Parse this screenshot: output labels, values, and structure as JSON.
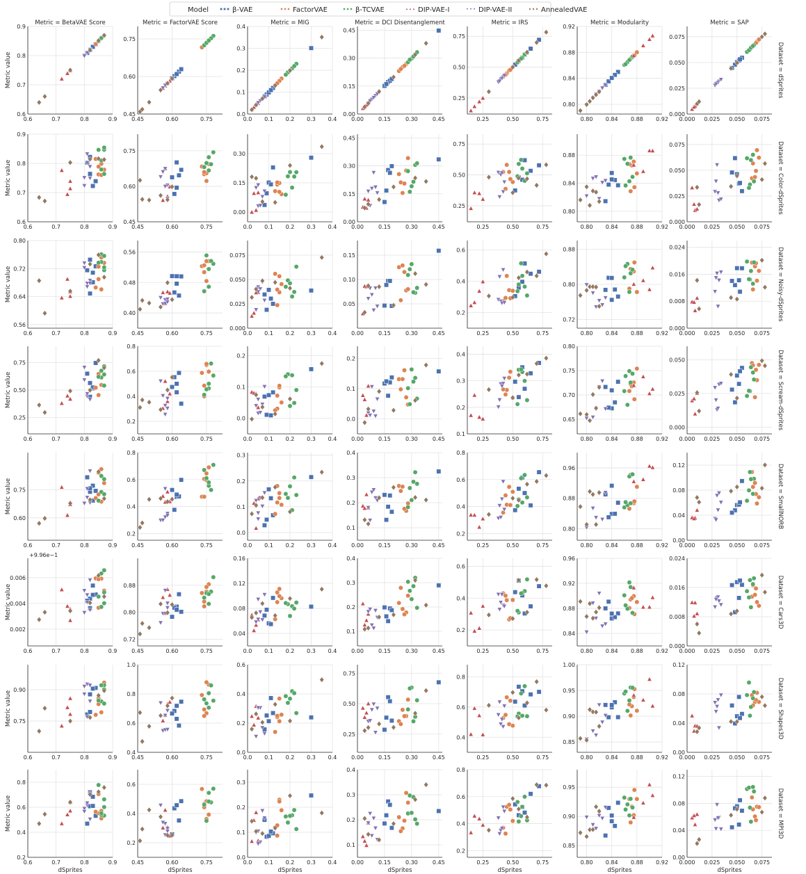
{
  "legend": {
    "title": "Model",
    "entries": [
      {
        "name": "β-VAE",
        "color": "#4c72b0",
        "marker": "square"
      },
      {
        "name": "FactorVAE",
        "color": "#dd8452",
        "marker": "circle-small"
      },
      {
        "name": "β-TCVAE",
        "color": "#55a868",
        "marker": "circle"
      },
      {
        "name": "DIP-VAE-I",
        "color": "#c44e52",
        "marker": "triangle-up"
      },
      {
        "name": "DIP-VAE-II",
        "color": "#8172b3",
        "marker": "triangle-down"
      },
      {
        "name": "AnnealedVAE",
        "color": "#937860",
        "marker": "diamond"
      }
    ]
  },
  "chart_data": {
    "type": "scatter",
    "col_header_prefix": "Metric = ",
    "row_header_prefix": "Dataset = ",
    "xlabel": "dSprites",
    "ylabel": "Metric value",
    "grid": true,
    "legend_placement": "top-center",
    "columns": [
      {
        "metric": "BetaVAE Score",
        "xlim": [
          0.6,
          0.9
        ],
        "xticks": [
          "0.6",
          "0.7",
          "0.8",
          "0.9"
        ]
      },
      {
        "metric": "FactorVAE Score",
        "xlim": [
          0.45,
          0.82
        ],
        "xticks": [
          "0.45",
          "0.60",
          "0.75"
        ]
      },
      {
        "metric": "MIG",
        "xlim": [
          0.0,
          0.4
        ],
        "xticks": [
          "0.0",
          "0.1",
          "0.2",
          "0.3",
          "0.4"
        ]
      },
      {
        "metric": "DCI Disentanglement",
        "xlim": [
          0.0,
          0.47
        ],
        "xticks": [
          "0.00",
          "0.15",
          "0.30",
          "0.45"
        ]
      },
      {
        "metric": "IRS",
        "xlim": [
          0.12,
          0.83
        ],
        "xticks": [
          "0.25",
          "0.50",
          "0.75"
        ]
      },
      {
        "metric": "Modularity",
        "xlim": [
          0.785,
          0.92
        ],
        "xticks": [
          "0.80",
          "0.84",
          "0.88",
          "0.92"
        ]
      },
      {
        "metric": "SAP",
        "xlim": [
          0.0,
          0.085
        ],
        "xticks": [
          "0.000",
          "0.025",
          "0.050",
          "0.075"
        ]
      }
    ],
    "rows": [
      {
        "dataset": "dSprites",
        "ylims": [
          [
            0.6,
            0.9
          ],
          [
            0.45,
            0.8
          ],
          [
            0,
            0.4
          ],
          [
            0,
            0.47
          ],
          [
            0.12,
            0.83
          ],
          [
            0.785,
            0.92
          ],
          [
            0,
            0.085
          ]
        ],
        "yticks": [
          [
            "0.6",
            "0.7",
            "0.8",
            "0.9"
          ],
          [
            "0.45",
            "0.60",
            "0.75"
          ],
          [
            "0.0",
            "0.1",
            "0.2",
            "0.3",
            "0.4"
          ],
          [
            "0.00",
            "0.15",
            "0.30",
            "0.45"
          ],
          [
            "0.25",
            "0.50",
            "0.75"
          ],
          [
            "0.80",
            "0.84",
            "0.88",
            "0.92"
          ],
          [
            "0.000",
            "0.025",
            "0.050",
            "0.075"
          ]
        ]
      },
      {
        "dataset": "Color-dSprites",
        "ylims": [
          [
            0.6,
            0.9
          ],
          [
            0.45,
            0.82
          ],
          [
            -0.05,
            0.4
          ],
          [
            0,
            0.47
          ],
          [
            0.12,
            0.83
          ],
          [
            0.785,
            0.91
          ],
          [
            0,
            0.085
          ]
        ],
        "yticks": [
          [
            "0.6",
            "0.7",
            "0.8",
            "0.9"
          ],
          [
            "0.45",
            "0.60",
            "0.75"
          ],
          [
            "0.00",
            "0.15",
            "0.30"
          ],
          [
            "0.00",
            "0.15",
            "0.30",
            "0.45"
          ],
          [
            "0.25",
            "0.50",
            "0.75"
          ],
          [
            "0.80",
            "0.84",
            "0.88"
          ],
          [
            "0.000",
            "0.025",
            "0.050",
            "0.075"
          ]
        ]
      },
      {
        "dataset": "Noisy-dSprites",
        "ylims": [
          [
            0.55,
            0.8
          ],
          [
            0.36,
            0.59
          ],
          [
            0,
            0.09
          ],
          [
            0,
            0.18
          ],
          [
            0.1,
            0.66
          ],
          [
            0.7,
            0.9
          ],
          [
            0,
            0.026
          ]
        ],
        "yticks": [
          [
            "0.56",
            "0.64",
            "0.72",
            "0.80"
          ],
          [
            "0.40",
            "0.48",
            "0.56"
          ],
          [
            "0.000",
            "0.025",
            "0.050",
            "0.075"
          ],
          [
            "0.05",
            "0.10",
            "0.15"
          ],
          [
            "0.2",
            "0.4",
            "0.6"
          ],
          [
            "0.72",
            "0.80",
            "0.88"
          ],
          [
            "0.000",
            "0.008",
            "0.016",
            "0.024"
          ]
        ]
      },
      {
        "dataset": "Scream-dSprites",
        "ylims": [
          [
            0.1,
            0.9
          ],
          [
            0.1,
            0.8
          ],
          [
            -0.05,
            0.23
          ],
          [
            -0.05,
            0.24
          ],
          [
            0.1,
            0.43
          ],
          [
            0.62,
            0.8
          ],
          [
            -0.005,
            0.06
          ]
        ],
        "yticks": [
          [
            "0.25",
            "0.50",
            "0.75"
          ],
          [
            "0.2",
            "0.4",
            "0.6",
            "0.8"
          ],
          [
            "0.0",
            "0.1",
            "0.2"
          ],
          [
            "0.0",
            "0.1",
            "0.2"
          ],
          [
            "0.1",
            "0.2",
            "0.3",
            "0.4"
          ],
          [
            "0.65",
            "0.70",
            "0.75",
            "0.80"
          ],
          [
            "0.000",
            "0.025",
            "0.050"
          ]
        ]
      },
      {
        "dataset": "SmallNORB",
        "ylims": [
          [
            0.48,
            0.95
          ],
          [
            0.15,
            0.8
          ],
          [
            -0.03,
            0.31
          ],
          [
            0.05,
            0.4
          ],
          [
            0.15,
            0.8
          ],
          [
            0.77,
            1.0
          ],
          [
            0,
            0.14
          ]
        ],
        "yticks": [
          [
            "0.60",
            "0.75"
          ],
          [
            "0.2",
            "0.4",
            "0.6",
            "0.8"
          ],
          [
            "0.0",
            "0.1",
            "0.2",
            "0.3"
          ],
          [
            "0.1",
            "0.2",
            "0.3",
            "0.4"
          ],
          [
            "0.2",
            "0.4",
            "0.6",
            "0.8"
          ],
          [
            "0.80",
            "0.88",
            "0.96"
          ],
          [
            "0.00",
            "0.04",
            "0.08",
            "0.12"
          ]
        ]
      },
      {
        "dataset": "Cars3D",
        "offset_text": "+9.96e−1",
        "ylims": [
          [
            0.0007,
            0.0075
          ],
          [
            0.7,
            0.96
          ],
          [
            0.02,
            0.16
          ],
          [
            0.04,
            0.4
          ],
          [
            0.1,
            0.65
          ],
          [
            0.82,
            0.96
          ],
          [
            0,
            0.024
          ]
        ],
        "yticks": [
          [
            "0.002",
            "0.004",
            "0.006"
          ],
          [
            "0.72",
            "0.80",
            "0.88"
          ],
          [
            "0.04",
            "0.08",
            "0.12",
            "0.16"
          ],
          [
            "0.1",
            "0.2",
            "0.3",
            "0.4"
          ],
          [
            "0.2",
            "0.4",
            "0.6"
          ],
          [
            "0.84",
            "0.88",
            "0.92",
            "0.96"
          ],
          [
            "0.000",
            "0.008",
            "0.016",
            "0.024"
          ]
        ]
      },
      {
        "dataset": "Shapes3D",
        "ylims": [
          [
            0.6,
            1.02
          ],
          [
            0.4,
            1.0
          ],
          [
            0,
            0.6
          ],
          [
            0.1,
            0.82
          ],
          [
            0.3,
            0.88
          ],
          [
            0.83,
            1.0
          ],
          [
            0,
            0.12
          ]
        ],
        "yticks": [
          [
            "0.75",
            "0.90"
          ],
          [
            "0.4",
            "0.6",
            "0.8",
            "1.0"
          ],
          [
            "0.0",
            "0.2",
            "0.4",
            "0.6"
          ],
          [
            "0.25",
            "0.50",
            "0.75"
          ],
          [
            "0.4",
            "0.6",
            "0.8"
          ],
          [
            "0.85",
            "0.90",
            "0.95",
            "1.00"
          ],
          [
            "0.00",
            "0.04",
            "0.08",
            "0.12"
          ]
        ]
      },
      {
        "dataset": "MPI3D",
        "ylims": [
          [
            0.2,
            0.9
          ],
          [
            0.1,
            0.7
          ],
          [
            0,
            0.35
          ],
          [
            0.05,
            0.4
          ],
          [
            0.15,
            0.8
          ],
          [
            0.83,
            0.98
          ],
          [
            0,
            0.13
          ]
        ],
        "yticks": [
          [
            "0.2",
            "0.4",
            "0.6",
            "0.8"
          ],
          [
            "0.2",
            "0.4",
            "0.6"
          ],
          [
            "0.0",
            "0.1",
            "0.2",
            "0.3"
          ],
          [
            "0.1",
            "0.2",
            "0.3",
            "0.4"
          ],
          [
            "0.2",
            "0.4",
            "0.6",
            "0.8"
          ],
          [
            "0.85",
            "0.90",
            "0.95"
          ],
          [
            "0.00",
            "0.04",
            "0.08",
            "0.12"
          ]
        ]
      }
    ],
    "dsprites_scores": {
      "note_models_order": [
        "β-VAE",
        "FactorVAE",
        "β-TCVAE",
        "DIP-VAE-I",
        "DIP-VAE-II",
        "AnnealedVAE"
      ],
      "x": [
        [
          [
            0.82,
            0.83,
            0.84,
            0.81,
            0.82,
            0.83
          ],
          [
            0.86,
            0.85,
            0.87,
            0.86,
            0.84,
            0.85
          ],
          [
            0.87,
            0.86,
            0.87,
            0.85,
            0.86,
            0.87
          ],
          [
            0.72,
            0.75,
            0.74,
            0.75
          ],
          [
            0.8,
            0.81,
            0.82,
            0.81,
            0.82,
            0.8
          ],
          [
            0.64,
            0.66,
            0.75,
            0.87,
            0.82,
            0.85
          ]
        ],
        [
          [
            0.62,
            0.63,
            0.61,
            0.64,
            0.62,
            0.6
          ],
          [
            0.74,
            0.75,
            0.76,
            0.73,
            0.75,
            0.74
          ],
          [
            0.78,
            0.76,
            0.74,
            0.77,
            0.75,
            0.76
          ],
          [
            0.56,
            0.58,
            0.59,
            0.57
          ],
          [
            0.55,
            0.57,
            0.58,
            0.56,
            0.57,
            0.58
          ],
          [
            0.46,
            0.47,
            0.5,
            0.55,
            0.58,
            0.6
          ]
        ],
        [
          [
            0.09,
            0.12,
            0.3,
            0.1,
            0.11,
            0.08
          ],
          [
            0.14,
            0.16,
            0.15,
            0.13,
            0.15,
            0.14
          ],
          [
            0.19,
            0.21,
            0.23,
            0.2,
            0.22,
            0.18
          ],
          [
            0.02,
            0.03,
            0.05,
            0.04
          ],
          [
            0.04,
            0.05,
            0.06,
            0.07,
            0.08,
            0.05
          ],
          [
            0.02,
            0.04,
            0.07,
            0.13,
            0.2,
            0.35
          ]
        ],
        [
          [
            0.17,
            0.18,
            0.45,
            0.19,
            0.15,
            0.16
          ],
          [
            0.23,
            0.25,
            0.27,
            0.24,
            0.26,
            0.28
          ],
          [
            0.28,
            0.3,
            0.32,
            0.33,
            0.29,
            0.31
          ],
          [
            0.03,
            0.04,
            0.05,
            0.06
          ],
          [
            0.06,
            0.08,
            0.1,
            0.09,
            0.07,
            0.11
          ],
          [
            0.04,
            0.06,
            0.12,
            0.2,
            0.38,
            0.32
          ]
        ],
        [
          [
            0.52,
            0.55,
            0.58,
            0.6,
            0.65,
            0.72
          ],
          [
            0.45,
            0.47,
            0.5,
            0.42,
            0.48,
            0.44
          ],
          [
            0.55,
            0.6,
            0.58,
            0.62,
            0.54,
            0.57
          ],
          [
            0.15,
            0.18,
            0.22,
            0.25
          ],
          [
            0.38,
            0.4,
            0.42,
            0.41,
            0.39,
            0.43
          ],
          [
            0.3,
            0.5,
            0.55,
            0.62,
            0.7,
            0.78
          ]
        ],
        [
          [
            0.84,
            0.85,
            0.83,
            0.845,
            0.835,
            0.84
          ],
          [
            0.87,
            0.875,
            0.88,
            0.872,
            0.868,
            0.876
          ],
          [
            0.86,
            0.865,
            0.87,
            0.862,
            0.868,
            0.873
          ],
          [
            0.9,
            0.875,
            0.905,
            0.89
          ],
          [
            0.8,
            0.81,
            0.82,
            0.815,
            0.825,
            0.83
          ],
          [
            0.79,
            0.8,
            0.805,
            0.81,
            0.815,
            0.82
          ]
        ],
        [
          [
            0.05,
            0.052,
            0.055,
            0.048,
            0.045,
            0.053
          ],
          [
            0.065,
            0.07,
            0.068,
            0.072,
            0.066,
            0.069
          ],
          [
            0.06,
            0.063,
            0.067,
            0.062,
            0.064,
            0.066
          ],
          [
            0.005,
            0.008,
            0.01,
            0.007
          ],
          [
            0.028,
            0.03,
            0.032,
            0.034,
            0.031,
            0.029
          ],
          [
            0.01,
            0.012,
            0.044,
            0.05,
            0.075,
            0.078
          ]
        ]
      ]
    },
    "points_are_estimated": true
  }
}
